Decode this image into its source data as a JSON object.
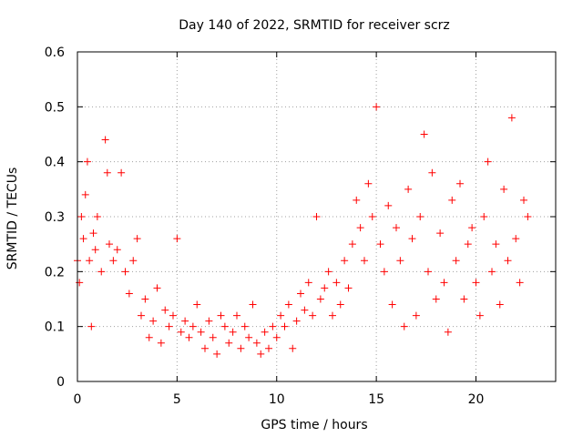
{
  "chart_data": {
    "type": "scatter",
    "title": "Day 140 of 2022, SRMTID for receiver scrz",
    "xlabel": "GPS time / hours",
    "ylabel": "SRMTID / TECUs",
    "xlim": [
      0,
      24
    ],
    "ylim": [
      0,
      0.6
    ],
    "xticks": [
      0,
      5,
      10,
      15,
      20
    ],
    "xtick_labels": [
      "0",
      "5",
      "10",
      "15",
      "20"
    ],
    "yticks": [
      0,
      0.1,
      0.2,
      0.3,
      0.4,
      0.5,
      0.6
    ],
    "ytick_labels": [
      "0",
      "0.1",
      "0.2",
      "0.3",
      "0.4",
      "0.5",
      "0.6"
    ],
    "grid": true,
    "marker": "+",
    "series": [
      {
        "name": "SRMTID",
        "color": "#ff0000",
        "x": [
          0.0,
          0.1,
          0.2,
          0.3,
          0.4,
          0.5,
          0.6,
          0.7,
          0.8,
          0.9,
          1.0,
          1.2,
          1.4,
          1.5,
          1.6,
          1.8,
          2.0,
          2.2,
          2.4,
          2.6,
          2.8,
          3.0,
          3.2,
          3.4,
          3.6,
          3.8,
          4.0,
          4.2,
          4.4,
          4.6,
          4.8,
          5.0,
          5.2,
          5.4,
          5.6,
          5.8,
          6.0,
          6.2,
          6.4,
          6.6,
          6.8,
          7.0,
          7.2,
          7.4,
          7.6,
          7.8,
          8.0,
          8.2,
          8.4,
          8.6,
          8.8,
          9.0,
          9.2,
          9.4,
          9.6,
          9.8,
          10.0,
          10.2,
          10.4,
          10.6,
          10.8,
          11.0,
          11.2,
          11.4,
          11.6,
          11.8,
          12.0,
          12.2,
          12.4,
          12.6,
          12.8,
          13.0,
          13.2,
          13.4,
          13.6,
          13.8,
          14.0,
          14.2,
          14.4,
          14.6,
          14.8,
          15.0,
          15.2,
          15.4,
          15.6,
          15.8,
          16.0,
          16.2,
          16.4,
          16.6,
          16.8,
          17.0,
          17.2,
          17.4,
          17.6,
          17.8,
          18.0,
          18.2,
          18.4,
          18.6,
          18.8,
          19.0,
          19.2,
          19.4,
          19.6,
          19.8,
          20.0,
          20.2,
          20.4,
          20.6,
          20.8,
          21.0,
          21.2,
          21.4,
          21.6,
          21.8,
          22.0,
          22.2,
          22.4,
          22.6
        ],
        "y": [
          0.22,
          0.18,
          0.3,
          0.26,
          0.34,
          0.4,
          0.22,
          0.1,
          0.27,
          0.24,
          0.3,
          0.2,
          0.44,
          0.38,
          0.25,
          0.22,
          0.24,
          0.38,
          0.2,
          0.16,
          0.22,
          0.26,
          0.12,
          0.15,
          0.08,
          0.11,
          0.17,
          0.07,
          0.13,
          0.1,
          0.12,
          0.26,
          0.09,
          0.11,
          0.08,
          0.1,
          0.14,
          0.09,
          0.06,
          0.11,
          0.08,
          0.05,
          0.12,
          0.1,
          0.07,
          0.09,
          0.12,
          0.06,
          0.1,
          0.08,
          0.14,
          0.07,
          0.05,
          0.09,
          0.06,
          0.1,
          0.08,
          0.12,
          0.1,
          0.14,
          0.06,
          0.11,
          0.16,
          0.13,
          0.18,
          0.12,
          0.3,
          0.15,
          0.17,
          0.2,
          0.12,
          0.18,
          0.14,
          0.22,
          0.17,
          0.25,
          0.33,
          0.28,
          0.22,
          0.36,
          0.3,
          0.5,
          0.25,
          0.2,
          0.32,
          0.14,
          0.28,
          0.22,
          0.1,
          0.35,
          0.26,
          0.12,
          0.3,
          0.45,
          0.2,
          0.38,
          0.15,
          0.27,
          0.18,
          0.09,
          0.33,
          0.22,
          0.36,
          0.15,
          0.25,
          0.28,
          0.18,
          0.12,
          0.3,
          0.4,
          0.2,
          0.25,
          0.14,
          0.35,
          0.22,
          0.48,
          0.26,
          0.18,
          0.33,
          0.3
        ]
      }
    ]
  }
}
